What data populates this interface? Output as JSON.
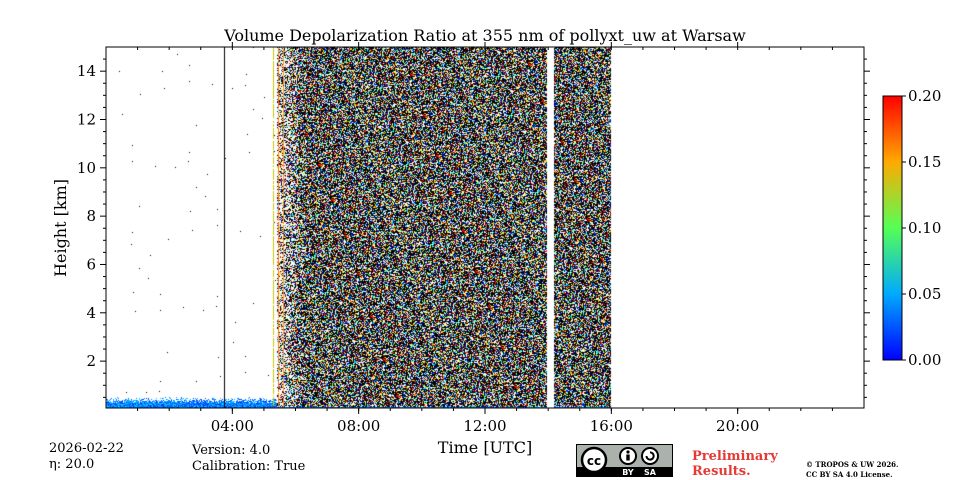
{
  "chart_data": {
    "type": "heatmap",
    "title": "Volume Depolarization Ratio at 355 nm of pollyxt_uw at Warsaw",
    "xlabel": "Time [UTC]",
    "ylabel": "Height [km]",
    "xlim": [
      0,
      24
    ],
    "ylim": [
      0.06,
      15
    ],
    "x_ticks": [
      4,
      8,
      12,
      16,
      20
    ],
    "x_tick_labels": [
      "04:00",
      "08:00",
      "12:00",
      "16:00",
      "20:00"
    ],
    "y_ticks": [
      2,
      4,
      6,
      8,
      10,
      12,
      14
    ],
    "y_tick_labels": [
      "2",
      "4",
      "6",
      "8",
      "10",
      "12",
      "14"
    ],
    "colorbar": {
      "range": [
        0,
        0.2
      ],
      "ticks": [
        0,
        0.05,
        0.1,
        0.15,
        0.2
      ],
      "tick_labels": [
        "0.00",
        "0.05",
        "0.10",
        "0.15",
        "0.20"
      ],
      "colormap": "jet"
    },
    "data_regions": [
      {
        "name": "noisy-signal-block",
        "t_start": 5.4,
        "t_end": 16.0,
        "h_start": 0.1,
        "h_end": 15.0
      },
      {
        "name": "boundary-layer-low-values",
        "t_start": 0.0,
        "t_end": 16.0,
        "h_start": 0.06,
        "h_end": 0.5
      }
    ],
    "gaps_utc": [
      [
        13.95,
        14.2
      ]
    ]
  },
  "footer": {
    "date": "2026-02-22",
    "eta": "η: 20.0",
    "version": "Version: 4.0",
    "calibration": "Calibration: True",
    "preliminary_line1": "Preliminary",
    "preliminary_line2": "Results.",
    "copyright_line1": "© TROPOS & UW 2026.",
    "copyright_line2": "CC BY SA 4.0 License.",
    "license_by": "BY",
    "license_sa": "SA",
    "license_cc": "cc"
  }
}
